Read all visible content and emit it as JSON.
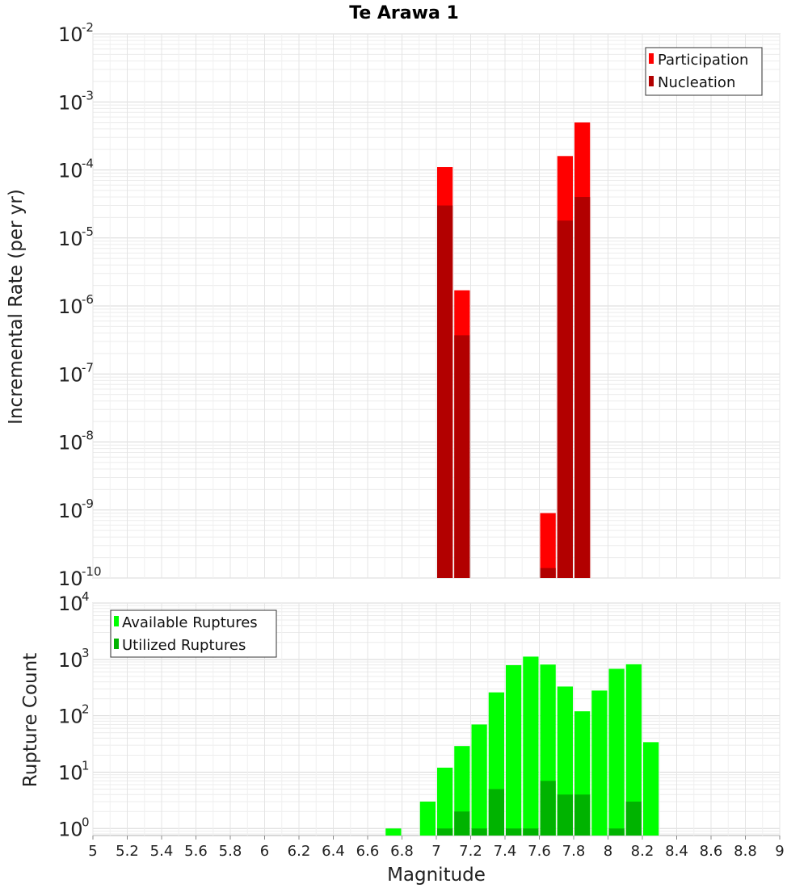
{
  "chart_data": [
    {
      "type": "bar",
      "title": "Te Arawa 1",
      "xlabel": "",
      "ylabel": "Incremental Rate (per yr)",
      "yscale": "log",
      "ylim": [
        1e-10,
        0.01
      ],
      "xlim": [
        5,
        9
      ],
      "y_ticks": [
        {
          "base": "10",
          "exp": "-10",
          "value": 1e-10
        },
        {
          "base": "10",
          "exp": "-9",
          "value": 1e-09
        },
        {
          "base": "10",
          "exp": "-8",
          "value": 1e-08
        },
        {
          "base": "10",
          "exp": "-7",
          "value": 1e-07
        },
        {
          "base": "10",
          "exp": "-6",
          "value": 1e-06
        },
        {
          "base": "10",
          "exp": "-5",
          "value": 1e-05
        },
        {
          "base": "10",
          "exp": "-4",
          "value": 0.0001
        },
        {
          "base": "10",
          "exp": "-3",
          "value": 0.001
        },
        {
          "base": "10",
          "exp": "-2",
          "value": 0.01
        }
      ],
      "legend_position": "top-right",
      "series": [
        {
          "name": "Participation",
          "color": "#ff0000",
          "points": [
            {
              "x": 7.05,
              "y": 0.00011
            },
            {
              "x": 7.15,
              "y": 1.7e-06
            },
            {
              "x": 7.65,
              "y": 9e-10
            },
            {
              "x": 7.75,
              "y": 0.00016
            },
            {
              "x": 7.85,
              "y": 0.0005
            }
          ]
        },
        {
          "name": "Nucleation",
          "color": "#b20000",
          "points": [
            {
              "x": 7.05,
              "y": 3e-05
            },
            {
              "x": 7.15,
              "y": 3.7e-07
            },
            {
              "x": 7.65,
              "y": 1.4e-10
            },
            {
              "x": 7.75,
              "y": 1.8e-05
            },
            {
              "x": 7.85,
              "y": 4e-05
            }
          ]
        }
      ]
    },
    {
      "type": "bar",
      "title": "",
      "xlabel": "Magnitude",
      "ylabel": "Rupture Count",
      "yscale": "log",
      "ylim": [
        0.75,
        10000
      ],
      "xlim": [
        5,
        9
      ],
      "x_ticks": [
        "5",
        "5.2",
        "5.4",
        "5.6",
        "5.8",
        "6",
        "6.2",
        "6.4",
        "6.6",
        "6.8",
        "7",
        "7.2",
        "7.4",
        "7.6",
        "7.8",
        "8",
        "8.2",
        "8.4",
        "8.6",
        "8.8",
        "9"
      ],
      "y_ticks": [
        {
          "base": "10",
          "exp": "0",
          "value": 1
        },
        {
          "base": "10",
          "exp": "1",
          "value": 10
        },
        {
          "base": "10",
          "exp": "2",
          "value": 100
        },
        {
          "base": "10",
          "exp": "3",
          "value": 1000
        },
        {
          "base": "10",
          "exp": "4",
          "value": 10000
        }
      ],
      "legend_position": "top-left",
      "series": [
        {
          "name": "Available Ruptures",
          "color": "#00ff00",
          "points": [
            {
              "x": 6.75,
              "y": 1
            },
            {
              "x": 6.95,
              "y": 3
            },
            {
              "x": 7.05,
              "y": 12
            },
            {
              "x": 7.15,
              "y": 29
            },
            {
              "x": 7.25,
              "y": 70
            },
            {
              "x": 7.35,
              "y": 260
            },
            {
              "x": 7.45,
              "y": 790
            },
            {
              "x": 7.55,
              "y": 1120
            },
            {
              "x": 7.65,
              "y": 810
            },
            {
              "x": 7.75,
              "y": 330
            },
            {
              "x": 7.85,
              "y": 120
            },
            {
              "x": 7.95,
              "y": 280
            },
            {
              "x": 8.05,
              "y": 680
            },
            {
              "x": 8.15,
              "y": 820
            },
            {
              "x": 8.25,
              "y": 34
            }
          ]
        },
        {
          "name": "Utilized Ruptures",
          "color": "#00b300",
          "points": [
            {
              "x": 7.05,
              "y": 1
            },
            {
              "x": 7.15,
              "y": 2
            },
            {
              "x": 7.25,
              "y": 1
            },
            {
              "x": 7.35,
              "y": 5
            },
            {
              "x": 7.45,
              "y": 1
            },
            {
              "x": 7.55,
              "y": 1
            },
            {
              "x": 7.65,
              "y": 7
            },
            {
              "x": 7.75,
              "y": 4
            },
            {
              "x": 7.85,
              "y": 4
            },
            {
              "x": 8.05,
              "y": 1
            },
            {
              "x": 8.15,
              "y": 3
            }
          ]
        }
      ]
    }
  ]
}
